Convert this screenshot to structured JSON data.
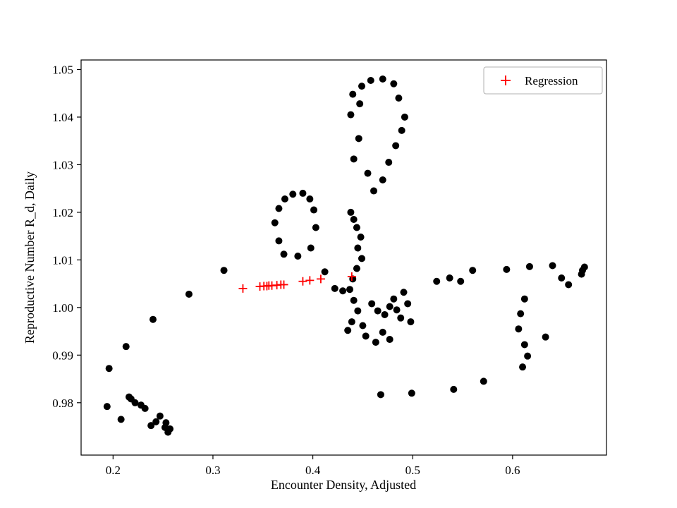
{
  "figure": {
    "background": "#ffffff"
  },
  "chart_data": {
    "type": "scatter",
    "title": "",
    "xlabel": "Encounter Density, Adjusted",
    "ylabel": "Reproductive Number R_d, Daily",
    "xlim": [
      0.168,
      0.694
    ],
    "ylim": [
      0.969,
      1.052
    ],
    "x_ticks": [
      0.2,
      0.3,
      0.4,
      0.5,
      0.6
    ],
    "y_ticks": [
      0.98,
      0.99,
      1.0,
      1.01,
      1.02,
      1.03,
      1.04,
      1.05
    ],
    "grid": false,
    "legend": {
      "position": "upper right",
      "entries": [
        {
          "label": "Regression",
          "marker": "plus",
          "color": "#ff0000"
        }
      ]
    },
    "series": [
      {
        "name": "observations",
        "marker": "circle",
        "color": "#000000",
        "points": [
          [
            0.196,
            0.9872
          ],
          [
            0.194,
            0.9792
          ],
          [
            0.208,
            0.9765
          ],
          [
            0.213,
            0.9918
          ],
          [
            0.216,
            0.9812
          ],
          [
            0.218,
            0.9808
          ],
          [
            0.222,
            0.98
          ],
          [
            0.228,
            0.9795
          ],
          [
            0.232,
            0.9788
          ],
          [
            0.238,
            0.9752
          ],
          [
            0.243,
            0.976
          ],
          [
            0.247,
            0.9772
          ],
          [
            0.252,
            0.9748
          ],
          [
            0.255,
            0.9738
          ],
          [
            0.257,
            0.9745
          ],
          [
            0.253,
            0.9758
          ],
          [
            0.24,
            0.9975
          ],
          [
            0.276,
            1.0028
          ],
          [
            0.311,
            1.0078
          ],
          [
            0.362,
            1.0178
          ],
          [
            0.366,
            1.0208
          ],
          [
            0.372,
            1.0228
          ],
          [
            0.38,
            1.0238
          ],
          [
            0.39,
            1.024
          ],
          [
            0.397,
            1.0228
          ],
          [
            0.401,
            1.0205
          ],
          [
            0.403,
            1.0168
          ],
          [
            0.398,
            1.0125
          ],
          [
            0.385,
            1.0108
          ],
          [
            0.371,
            1.0112
          ],
          [
            0.366,
            1.014
          ],
          [
            0.412,
            1.0075
          ],
          [
            0.422,
            1.004
          ],
          [
            0.43,
            1.0035
          ],
          [
            0.438,
            1.02
          ],
          [
            0.441,
            1.0185
          ],
          [
            0.444,
            1.0168
          ],
          [
            0.448,
            1.0148
          ],
          [
            0.445,
            1.0125
          ],
          [
            0.449,
            1.0103
          ],
          [
            0.444,
            1.0082
          ],
          [
            0.44,
            1.006
          ],
          [
            0.437,
            1.0038
          ],
          [
            0.441,
            1.0015
          ],
          [
            0.445,
            0.9993
          ],
          [
            0.439,
            0.997
          ],
          [
            0.435,
            0.9952
          ],
          [
            0.441,
            1.0312
          ],
          [
            0.446,
            1.0355
          ],
          [
            0.438,
            1.0405
          ],
          [
            0.44,
            1.0448
          ],
          [
            0.447,
            1.0428
          ],
          [
            0.449,
            1.0465
          ],
          [
            0.458,
            1.0477
          ],
          [
            0.47,
            1.048
          ],
          [
            0.481,
            1.047
          ],
          [
            0.486,
            1.044
          ],
          [
            0.492,
            1.04
          ],
          [
            0.489,
            1.0372
          ],
          [
            0.483,
            1.034
          ],
          [
            0.476,
            1.0305
          ],
          [
            0.47,
            1.0268
          ],
          [
            0.461,
            1.0245
          ],
          [
            0.455,
            1.0282
          ],
          [
            0.459,
            1.0008
          ],
          [
            0.465,
            0.9993
          ],
          [
            0.472,
            0.9985
          ],
          [
            0.477,
            1.0002
          ],
          [
            0.481,
            1.0018
          ],
          [
            0.484,
            0.9995
          ],
          [
            0.488,
            0.9978
          ],
          [
            0.491,
            1.0032
          ],
          [
            0.495,
            1.0008
          ],
          [
            0.498,
            0.997
          ],
          [
            0.47,
            0.9948
          ],
          [
            0.477,
            0.9933
          ],
          [
            0.463,
            0.9927
          ],
          [
            0.453,
            0.994
          ],
          [
            0.45,
            0.9962
          ],
          [
            0.468,
            0.9817
          ],
          [
            0.499,
            0.982
          ],
          [
            0.541,
            0.9828
          ],
          [
            0.571,
            0.9845
          ],
          [
            0.524,
            1.0055
          ],
          [
            0.537,
            1.0062
          ],
          [
            0.548,
            1.0055
          ],
          [
            0.56,
            1.0078
          ],
          [
            0.594,
            1.008
          ],
          [
            0.617,
            1.0086
          ],
          [
            0.608,
            0.9987
          ],
          [
            0.612,
            1.0018
          ],
          [
            0.606,
            0.9955
          ],
          [
            0.612,
            0.9922
          ],
          [
            0.61,
            0.9875
          ],
          [
            0.615,
            0.9898
          ],
          [
            0.633,
            0.9938
          ],
          [
            0.64,
            1.0088
          ],
          [
            0.649,
            1.0062
          ],
          [
            0.656,
            1.0048
          ],
          [
            0.67,
            1.0078
          ],
          [
            0.672,
            1.0085
          ],
          [
            0.669,
            1.007
          ]
        ]
      },
      {
        "name": "Regression",
        "marker": "plus",
        "color": "#ff0000",
        "points": [
          [
            0.33,
            1.004
          ],
          [
            0.347,
            1.0044
          ],
          [
            0.351,
            1.0045
          ],
          [
            0.354,
            1.0045
          ],
          [
            0.356,
            1.0046
          ],
          [
            0.359,
            1.0046
          ],
          [
            0.364,
            1.0047
          ],
          [
            0.368,
            1.0048
          ],
          [
            0.371,
            1.0048
          ],
          [
            0.39,
            1.0055
          ],
          [
            0.397,
            1.0057
          ],
          [
            0.408,
            1.006
          ],
          [
            0.439,
            1.0065
          ]
        ]
      }
    ]
  }
}
